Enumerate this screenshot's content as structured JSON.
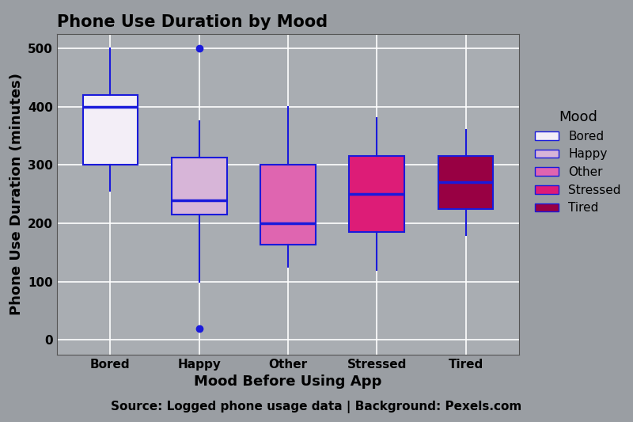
{
  "chart_data": {
    "type": "box",
    "title": "Phone Use Duration by Mood",
    "x_label": "Mood Before Using App",
    "y_label": "Phone Use Duration (minutes)",
    "caption": "Source: Logged phone usage data | Background: Pexels.com",
    "legend_title": "Mood",
    "legend": "right",
    "grid": true,
    "categories": [
      "Bored",
      "Happy",
      "Other",
      "Stressed",
      "Tired"
    ],
    "series": [
      {
        "name": "Bored",
        "color": "#f3eef7",
        "whislo": 255,
        "q1": 300,
        "med": 400,
        "q3": 420,
        "whishi": 500,
        "fliers": []
      },
      {
        "name": "Happy",
        "color": "#d7b5d8",
        "whislo": 100,
        "q1": 215,
        "med": 240,
        "q3": 313,
        "whishi": 375,
        "fliers": [
          500,
          20
        ]
      },
      {
        "name": "Other",
        "color": "#df65b0",
        "whislo": 125,
        "q1": 163,
        "med": 200,
        "q3": 300,
        "whishi": 400,
        "fliers": []
      },
      {
        "name": "Stressed",
        "color": "#dd1c77",
        "whislo": 120,
        "q1": 185,
        "med": 250,
        "q3": 315,
        "whishi": 380,
        "fliers": []
      },
      {
        "name": "Tired",
        "color": "#980043",
        "whislo": 180,
        "q1": 225,
        "med": 270,
        "q3": 315,
        "whishi": 360,
        "fliers": []
      }
    ],
    "ylim": [
      -25,
      525
    ],
    "yticks": [
      0,
      100,
      200,
      300,
      400,
      500
    ]
  }
}
